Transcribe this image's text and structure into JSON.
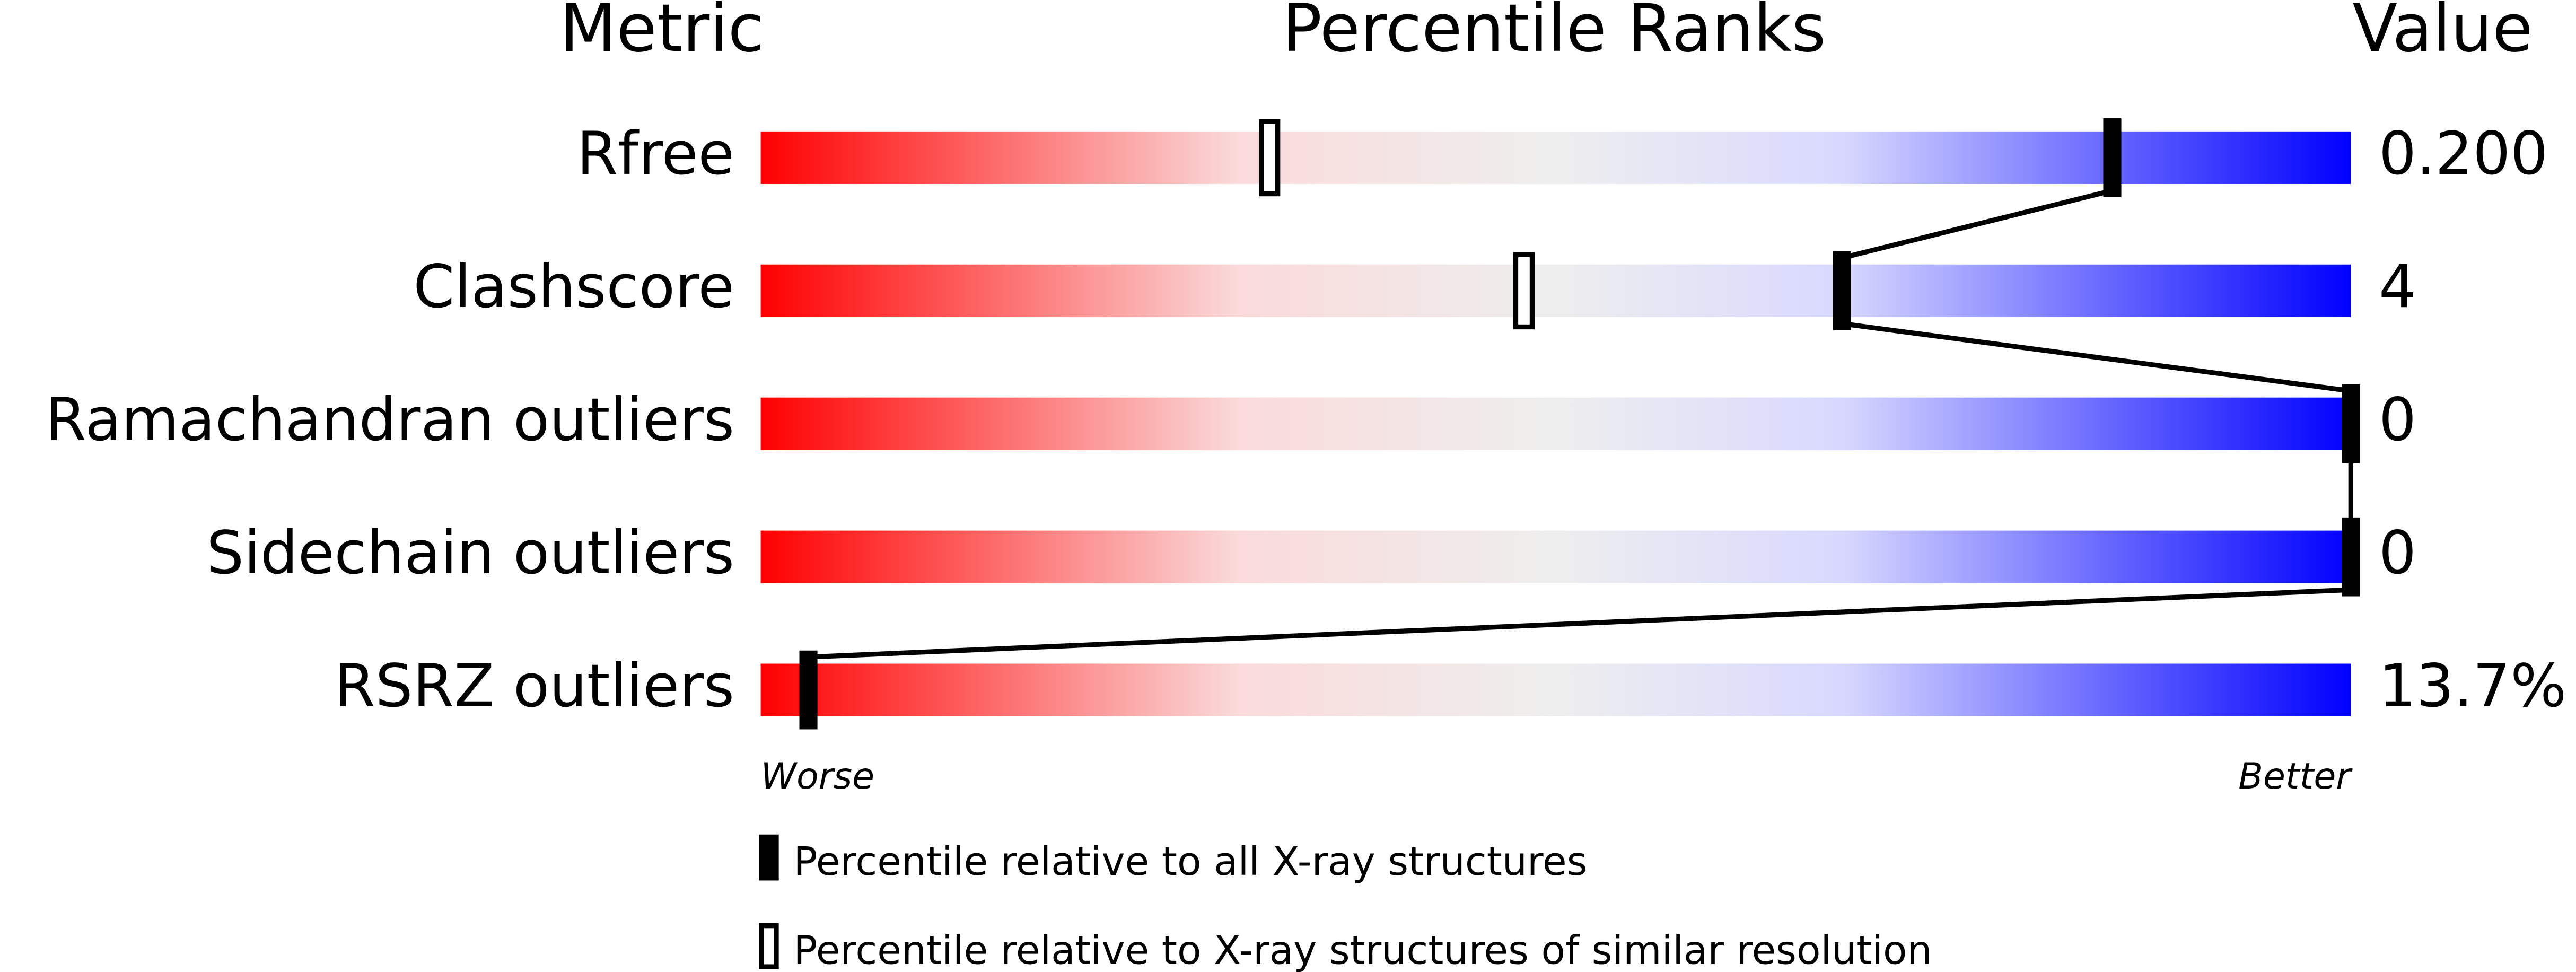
{
  "chart_data": {
    "type": "percentile-slider",
    "title": "Percentile Ranks",
    "metric_header": "Metric",
    "value_header": "Value",
    "categories": [
      "Rfree",
      "Clashscore",
      "Ramachandran outliers",
      "Sidechain outliers",
      "RSRZ outliers"
    ],
    "metric_values": [
      "0.200",
      "4",
      "0",
      "0",
      "13.7%"
    ],
    "series": [
      {
        "name": "Percentile relative to all X-ray structures",
        "style": "filled",
        "values": [
          85,
          68,
          100,
          100,
          3
        ]
      },
      {
        "name": "Percentile relative to X-ray structures of similar resolution",
        "style": "open",
        "values": [
          32,
          48,
          null,
          null,
          null
        ]
      }
    ],
    "xlim": [
      0,
      100
    ],
    "low_label": "Worse",
    "high_label": "Better"
  }
}
